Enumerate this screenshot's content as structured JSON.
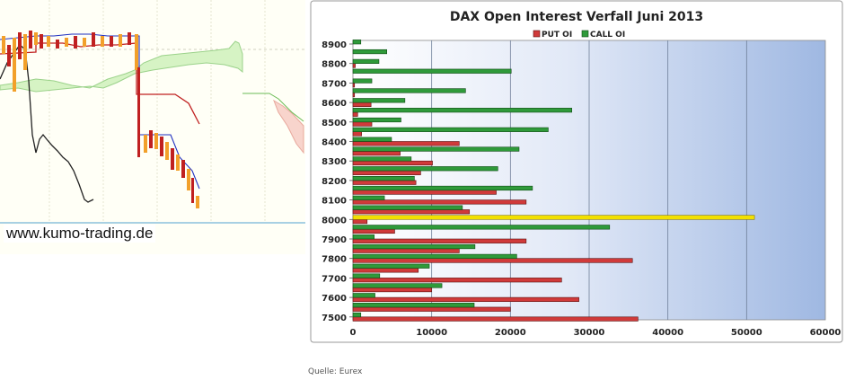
{
  "left_panel": {
    "watermark": "www.kumo-trading.de"
  },
  "chart_data": {
    "type": "bar",
    "orientation": "horizontal",
    "title": "DAX Open Interest Verfall Juni 2013",
    "legend": [
      "PUT OI",
      "CALL OI"
    ],
    "legend_position": "top-center",
    "categories": [
      7500,
      7550,
      7600,
      7650,
      7700,
      7750,
      7800,
      7850,
      7900,
      7950,
      8000,
      8050,
      8100,
      8150,
      8200,
      8250,
      8300,
      8350,
      8400,
      8450,
      8500,
      8550,
      8600,
      8650,
      8700,
      8750,
      8800,
      8850,
      8900
    ],
    "y_tick_labels": [
      "7500",
      "7600",
      "7700",
      "7800",
      "7900",
      "8000",
      "8100",
      "8200",
      "8300",
      "8400",
      "8500",
      "8600",
      "8700",
      "8800",
      "8900"
    ],
    "series": [
      {
        "name": "PUT OI",
        "color": "#d03a3a",
        "values": [
          36200,
          20000,
          28700,
          10000,
          26500,
          8300,
          35500,
          13500,
          22000,
          5300,
          1800,
          14800,
          22000,
          18200,
          8000,
          8600,
          10100,
          6000,
          13500,
          1100,
          2400,
          600,
          2300,
          200,
          200,
          0,
          300,
          0,
          0
        ]
      },
      {
        "name": "CALL OI",
        "color": "#2f9a3a",
        "values": [
          1000,
          15400,
          2800,
          11300,
          3400,
          9700,
          20800,
          15500,
          2700,
          32600,
          51000,
          13900,
          4000,
          22800,
          7800,
          18400,
          7400,
          21100,
          4900,
          24800,
          6100,
          27800,
          6600,
          14300,
          2400,
          20100,
          3300,
          4300,
          1000
        ]
      }
    ],
    "highlight": {
      "category": 8000,
      "series": "CALL OI",
      "color": "#f2e000"
    },
    "x_ticks": [
      0,
      10000,
      20000,
      30000,
      40000,
      50000,
      60000
    ],
    "xlim": [
      0,
      60000
    ],
    "ylim": [
      7500,
      8900
    ],
    "grid": true,
    "source": "Quelle: Eurex"
  }
}
